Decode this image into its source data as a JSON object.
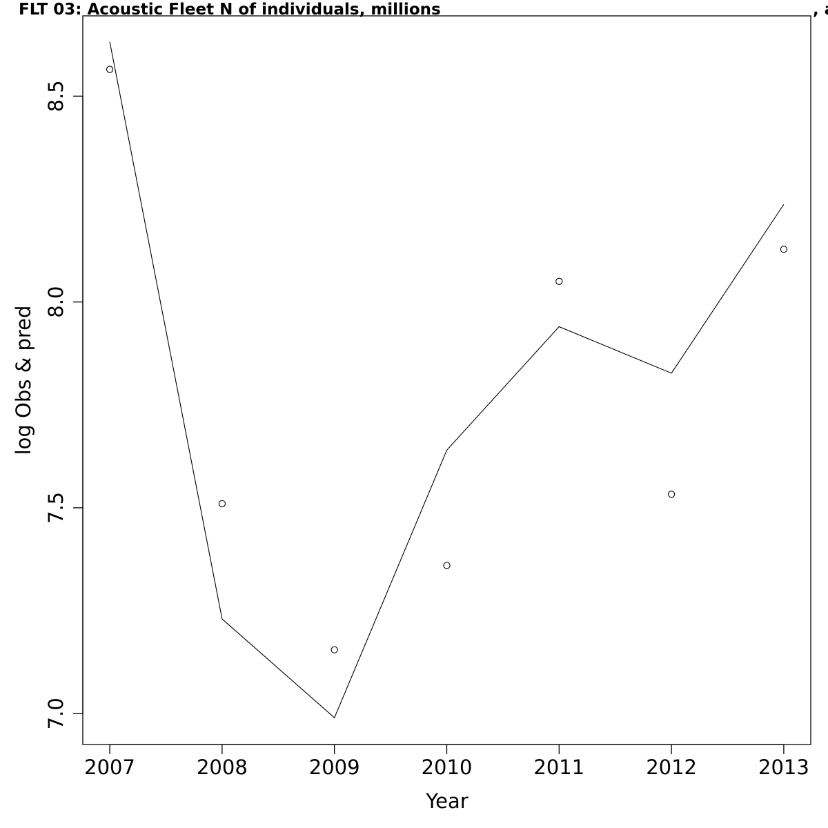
{
  "chart_data": {
    "type": "line",
    "title": "FLT 03: Acoustic Fleet   N of individuals, millions",
    "title_right_fragment": ", a",
    "xlabel": "Year",
    "ylabel": "log Obs & pred",
    "xlim": [
      2006.76,
      2013.24
    ],
    "ylim": [
      6.925,
      8.695
    ],
    "x_ticks": [
      2007,
      2008,
      2009,
      2010,
      2011,
      2012,
      2013
    ],
    "y_ticks": [
      7.0,
      7.5,
      8.0,
      8.5
    ],
    "x_tick_labels": [
      "2007",
      "2008",
      "2009",
      "2010",
      "2011",
      "2012",
      "2013"
    ],
    "y_tick_labels": [
      "7.0",
      "7.5",
      "8.0",
      "8.5"
    ],
    "x": [
      2007,
      2008,
      2009,
      2010,
      2011,
      2012,
      2013
    ],
    "series": [
      {
        "kind": "points",
        "values": [
          8.565,
          7.51,
          7.155,
          7.36,
          8.05,
          7.533,
          8.128
        ]
      },
      {
        "kind": "line",
        "values": [
          8.632,
          7.23,
          6.99,
          7.64,
          7.94,
          7.827,
          8.237
        ]
      }
    ],
    "grid": false,
    "legend": "none",
    "colors": {
      "line": "#000000",
      "points": "#000000",
      "axes": "#000000",
      "background": "#ffffff"
    }
  }
}
